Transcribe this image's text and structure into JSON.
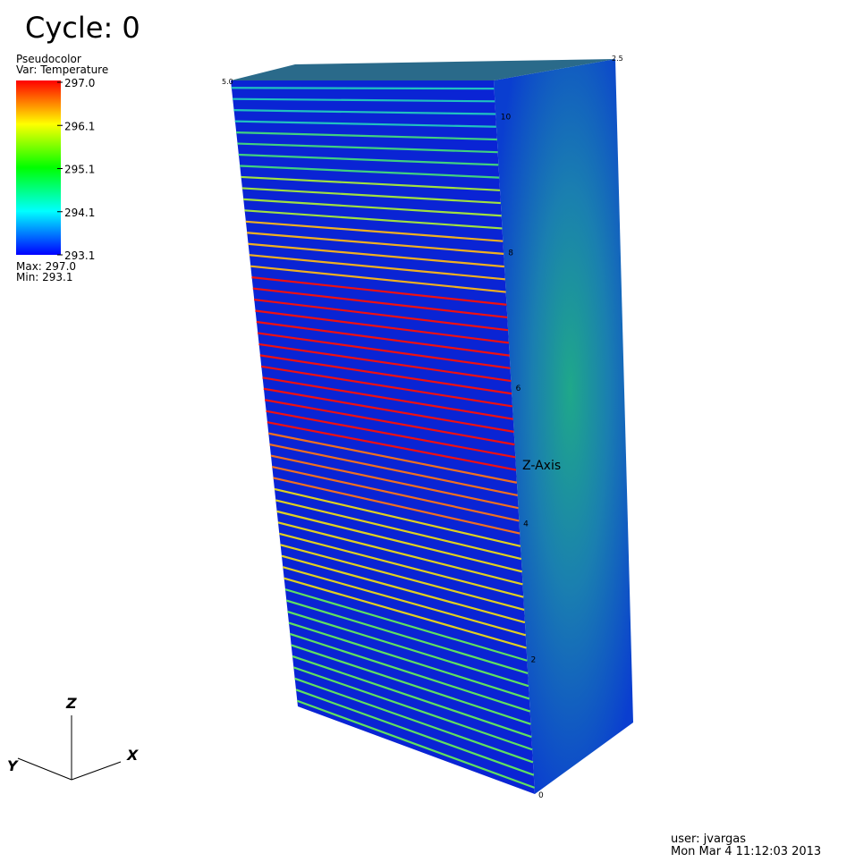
{
  "header": {
    "title": "Cycle: 0"
  },
  "legend": {
    "plot": "Pseudocolor",
    "variable": "Var: Temperature",
    "ticks": [
      "297.0",
      "296.1",
      "295.1",
      "294.1",
      "293.1"
    ],
    "max": "Max: 297.0",
    "min": "Min: 293.1"
  },
  "axes": {
    "z_label": "Z-Axis",
    "z_ticks": [
      "0",
      "2",
      "4",
      "6",
      "8",
      "10"
    ],
    "x_tick_left": "5.0",
    "y_tick_right": "2.5"
  },
  "triad": {
    "z": "Z",
    "y": "Y",
    "x": "X"
  },
  "footer": {
    "user": "user: jvargas",
    "date": "Mon Mar  4 11:12:03 2013"
  }
}
